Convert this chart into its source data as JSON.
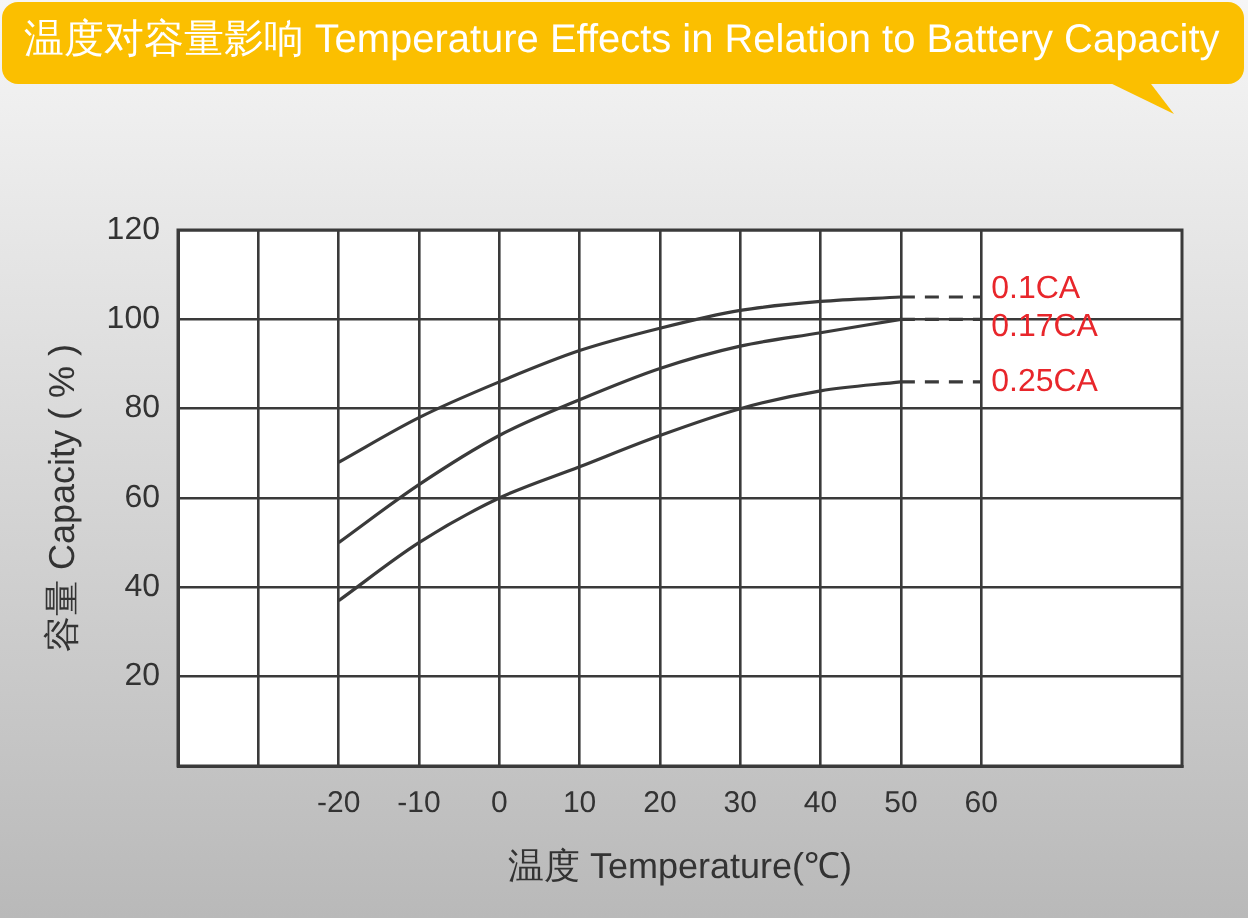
{
  "chart_data": {
    "type": "line",
    "title": "温度对容量影响 Temperature Effects in Relation to Battery Capacity",
    "xlabel": "温度 Temperature(℃)",
    "ylabel": "容量 Capacity ( % )",
    "xlim": [
      -40,
      85
    ],
    "xticks": [
      {
        "value": -30,
        "label": null
      },
      -20,
      -10,
      0,
      10,
      20,
      30,
      40,
      50,
      60
    ],
    "ylim": [
      0,
      120
    ],
    "yticks": [
      20,
      40,
      60,
      80,
      100,
      120
    ],
    "grid": true,
    "legend": false,
    "marker": "none",
    "series": [
      {
        "name": "0.1CA",
        "color": "#3a3a3a",
        "x": [
          -20,
          -10,
          0,
          10,
          20,
          30,
          40,
          50
        ],
        "values": [
          68,
          78,
          86,
          93,
          98,
          102,
          104,
          105
        ]
      },
      {
        "color": "#3a3a3a",
        "x": [
          50,
          60
        ],
        "values": [
          105,
          105
        ],
        "line_style": "dashed"
      },
      {
        "name": "0.17CA",
        "color": "#3a3a3a",
        "x": [
          -20,
          -10,
          0,
          10,
          20,
          30,
          40,
          50
        ],
        "values": [
          50,
          63,
          74,
          82,
          89,
          94,
          97,
          100
        ]
      },
      {
        "color": "#3a3a3a",
        "x": [
          50,
          60
        ],
        "values": [
          100,
          100
        ],
        "line_style": "dashed"
      },
      {
        "name": "0.25CA",
        "color": "#3a3a3a",
        "x": [
          -20,
          -10,
          0,
          10,
          20,
          30,
          40,
          50
        ],
        "values": [
          37,
          50,
          60,
          67,
          74,
          80,
          84,
          86
        ]
      },
      {
        "color": "#3a3a3a",
        "x": [
          50,
          60
        ],
        "values": [
          86,
          86
        ],
        "line_style": "dashed"
      }
    ]
  }
}
